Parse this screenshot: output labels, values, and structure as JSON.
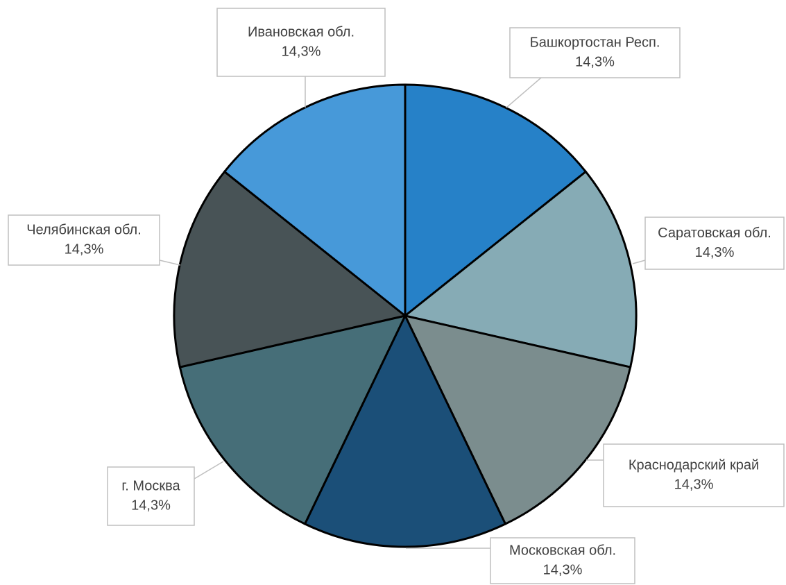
{
  "chart_data": {
    "type": "pie",
    "categories": [
      "Башкортостан Респ.",
      "Саратовская обл.",
      "Краснодарский край",
      "Московская обл.",
      "г. Москва",
      "Челябинская обл.",
      "Ивановская обл."
    ],
    "values": [
      14.3,
      14.3,
      14.3,
      14.3,
      14.3,
      14.3,
      14.3
    ],
    "value_labels": [
      "14,3%",
      "14,3%",
      "14,3%",
      "14,3%",
      "14,3%",
      "14,3%",
      "14,3%"
    ],
    "colors": [
      "#2681c8",
      "#86abb5",
      "#7b8d8e",
      "#1b4f78",
      "#466e78",
      "#485356",
      "#4799d9"
    ]
  }
}
